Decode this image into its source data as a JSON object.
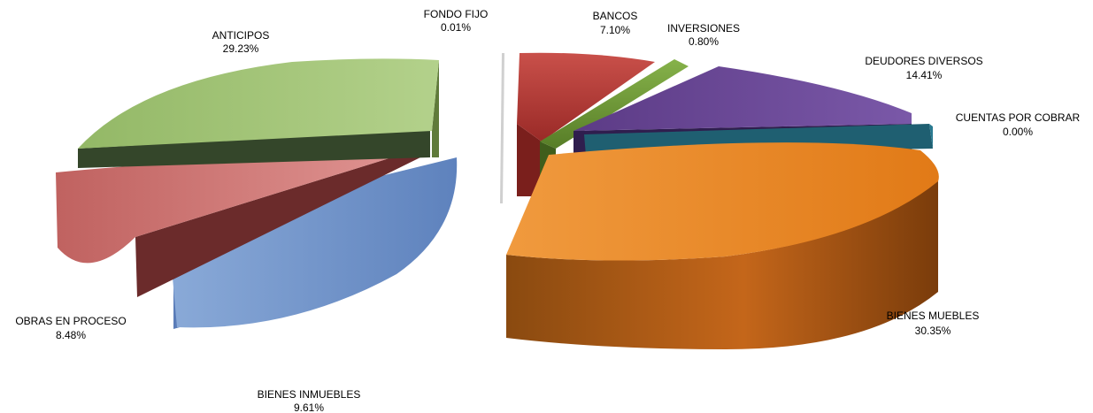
{
  "chart_data": {
    "type": "pie",
    "title": "",
    "legend": "none",
    "slices": [
      {
        "label": "FONDO FIJO",
        "value_label": "0.01%",
        "value": 0.01,
        "color": "#c8c8c8"
      },
      {
        "label": "BANCOS",
        "value_label": "7.10%",
        "value": 7.1,
        "color": "#b23a35"
      },
      {
        "label": "INVERSIONES",
        "value_label": "0.80%",
        "value": 0.8,
        "color": "#6f9a36"
      },
      {
        "label": "DEUDORES DIVERSOS",
        "value_label": "14.41%",
        "value": 14.41,
        "color": "#6a4897"
      },
      {
        "label": "CUENTAS POR COBRAR",
        "value_label": "0.00%",
        "value": 0.0,
        "color": "#2a7a90"
      },
      {
        "label": "BIENES MUEBLES",
        "value_label": "30.35%",
        "value": 30.35,
        "color": "#e8821e"
      },
      {
        "label": "BIENES INMUEBLES",
        "value_label": "9.61%",
        "value": 9.61,
        "color": "#7a9cd0"
      },
      {
        "label": "OBRAS EN PROCESO",
        "value_label": "8.48%",
        "value": 8.48,
        "color": "#d27a78"
      },
      {
        "label": "ANTICIPOS",
        "value_label": "29.23%",
        "value": 29.23,
        "color": "#a5c77a"
      }
    ]
  }
}
